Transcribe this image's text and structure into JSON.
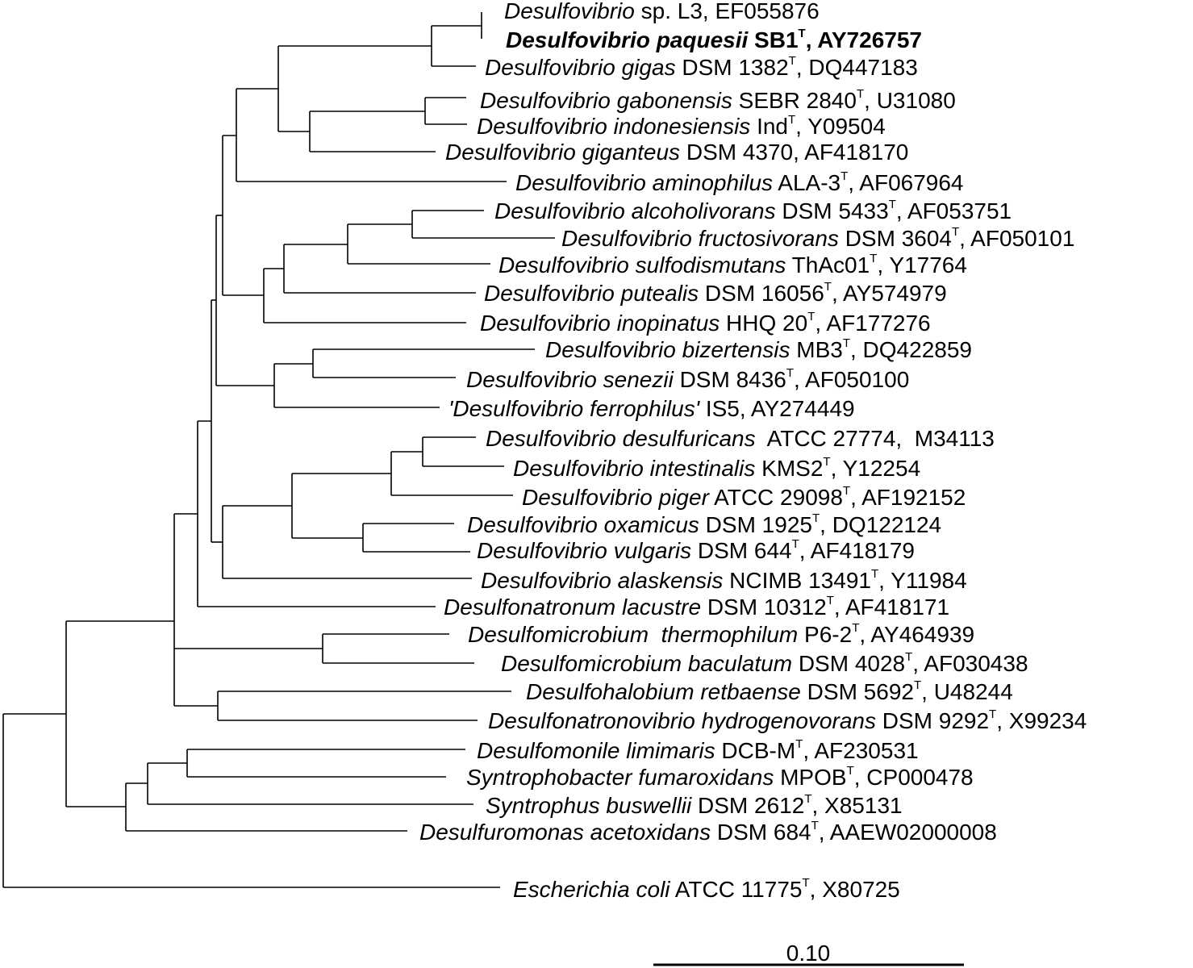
{
  "taxa": [
    {
      "id": "t1",
      "italic": "Desulfovibrio",
      "rest": " sp. L3, EF055876"
    },
    {
      "id": "t2",
      "italic": "Desulfovibrio paquesii",
      "rest": " SB1",
      "sup": "T",
      "after": ", AY726757",
      "bold": true
    },
    {
      "id": "t3",
      "italic": "Desulfovibrio gigas",
      "rest": " DSM 1382",
      "sup": "T",
      "after": ", DQ447183"
    },
    {
      "id": "t4",
      "italic": "Desulfovibrio gabonensis",
      "rest": " SEBR 2840",
      "sup": "T",
      "after": ", U31080"
    },
    {
      "id": "t5",
      "italic": "Desulfovibrio indonesiensis",
      "rest": " Ind",
      "sup": "T",
      "after": ", Y09504"
    },
    {
      "id": "t6",
      "italic": "Desulfovibrio giganteus",
      "rest": " DSM 4370, AF418170"
    },
    {
      "id": "t7",
      "italic": "Desulfovibrio aminophilus",
      "rest": " ALA-3",
      "sup": "T",
      "after": ", AF067964"
    },
    {
      "id": "t8",
      "italic": "Desulfovibrio alcoholivorans",
      "rest": " DSM 5433",
      "sup": "T",
      "after": ", AF053751"
    },
    {
      "id": "t9",
      "italic": "Desulfovibrio fructosivorans",
      "rest": " DSM 3604",
      "sup": "T",
      "after": ", AF050101"
    },
    {
      "id": "t10",
      "italic": "Desulfovibrio sulfodismutans",
      "rest": " ThAc01",
      "sup": "T",
      "after": ", Y17764"
    },
    {
      "id": "t11",
      "italic": "Desulfovibrio putealis",
      "rest": " DSM 16056",
      "sup": "T",
      "after": ", AY574979"
    },
    {
      "id": "t12",
      "italic": "Desulfovibrio inopinatus",
      "rest": " HHQ 20",
      "sup": "T",
      "after": ", AF177276"
    },
    {
      "id": "t13",
      "italic": "Desulfovibrio bizertensis",
      "rest": " MB3",
      "sup": "T",
      "after": ", DQ422859"
    },
    {
      "id": "t14",
      "italic": "Desulfovibrio senezii",
      "rest": " DSM 8436",
      "sup": "T",
      "after": ", AF050100"
    },
    {
      "id": "t15",
      "italic": "'Desulfovibrio ferrophilus'",
      "rest": " IS5, AY274449"
    },
    {
      "id": "t16",
      "italic": "Desulfovibrio desulfuricans",
      "rest": "  ATCC 27774,  M34113"
    },
    {
      "id": "t17",
      "italic": "Desulfovibrio intestinalis",
      "rest": " KMS2",
      "sup": "T",
      "after": ", Y12254"
    },
    {
      "id": "t18",
      "italic": "Desulfovibrio piger",
      "rest": " ATCC 29098",
      "sup": "T",
      "after": ", AF192152"
    },
    {
      "id": "t19",
      "italic": "Desulfovibrio oxamicus",
      "rest": " DSM 1925",
      "sup": "T",
      "after": ", DQ122124"
    },
    {
      "id": "t20",
      "italic": "Desulfovibrio vulgaris",
      "rest": " DSM 644",
      "sup": "T",
      "after": ", AF418179"
    },
    {
      "id": "t21",
      "italic": "Desulfovibrio alaskensis",
      "rest": " NCIMB 13491",
      "sup": "T",
      "after": ", Y11984"
    },
    {
      "id": "t22",
      "italic": "Desulfonatronum lacustre",
      "rest": " DSM 10312",
      "sup": "T",
      "after": ", AF418171"
    },
    {
      "id": "t23",
      "italic": "Desulfomicrobium  thermophilum",
      "rest": " P6-2",
      "sup": "T",
      "after": ", AY464939"
    },
    {
      "id": "t24",
      "italic": "Desulfomicrobium baculatum",
      "rest": " DSM 4028",
      "sup": "T",
      "after": ", AF030438"
    },
    {
      "id": "t25",
      "italic": "Desulfohalobium retbaense",
      "rest": " DSM 5692",
      "sup": "T",
      "after": ", U48244"
    },
    {
      "id": "t26",
      "italic": "Desulfonatronovibrio hydrogenovorans",
      "rest": " DSM 9292",
      "sup": "T",
      "after": ", X99234"
    },
    {
      "id": "t27",
      "italic": "Desulfomonile limimaris",
      "rest": " DCB-M",
      "sup": "T",
      "after": ", AF230531"
    },
    {
      "id": "t28",
      "italic": "Syntrophobacter fumaroxidans",
      "rest": " MPOB",
      "sup": "T",
      "after": ", CP000478"
    },
    {
      "id": "t29",
      "italic": "Syntrophus buswellii",
      "rest": " DSM 2612",
      "sup": "T",
      "after": ", X85131"
    },
    {
      "id": "t30",
      "italic": "Desulfuromonas acetoxidans",
      "rest": " DSM 684",
      "sup": "T",
      "after": ", AAEW02000008"
    },
    {
      "id": "t31",
      "italic": "Escherichia coli",
      "rest": " ATCC 11775",
      "sup": "T",
      "after": ", X80725"
    }
  ],
  "scale_bar": {
    "label": "0.10"
  }
}
